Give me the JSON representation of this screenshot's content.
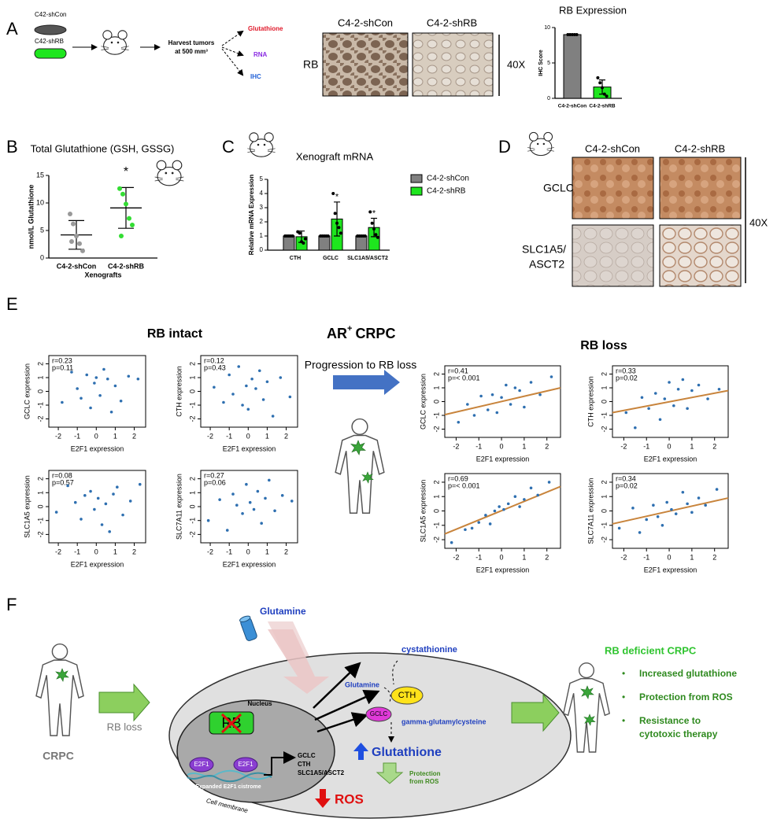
{
  "panel_a": {
    "letter": "A",
    "dishes": [
      "C42-shCon",
      "C42-shRB"
    ],
    "harvest": [
      "Harvest tumors",
      "at 500 mm³"
    ],
    "outputs": [
      "Glutathione",
      "RNA",
      "IHC"
    ],
    "ihc_columns": [
      "C4-2-shCon",
      "C4-2-shRB"
    ],
    "ihc_row": "RB",
    "magnification": "40X",
    "chart_data": {
      "type": "bar",
      "title": "RB Expression",
      "ylabel": "IHC Score",
      "categories": [
        "C4-2-shCon",
        "C4-2-shRB"
      ],
      "values": [
        9,
        1.6
      ],
      "errors": [
        0,
        1.0
      ],
      "colors": [
        "#808080",
        "#1ee61e"
      ],
      "points": [
        [
          9,
          9,
          9,
          9,
          9
        ],
        [
          2.9,
          2.2,
          1.5,
          0.6,
          0.3
        ]
      ],
      "ylim": [
        0,
        10
      ],
      "yticks": [
        0,
        5,
        10
      ]
    }
  },
  "panel_b": {
    "letter": "B",
    "chart_data": {
      "type": "dot",
      "title": "Total Glutathione (GSH, GSSG)",
      "ylabel": "nmol/L Glutathione",
      "xlabel": "Xenografts",
      "categories": [
        "C4-2-shCon",
        "C4-2-shRB"
      ],
      "values": [
        4.2,
        9.1
      ],
      "errors": [
        2.6,
        3.7
      ],
      "colors": [
        "#999999",
        "#33dd33"
      ],
      "points": [
        [
          8.0,
          6.2,
          4.0,
          2.6,
          1.3,
          3.0
        ],
        [
          12.6,
          11.6,
          9.8,
          7.2,
          6.0,
          4.0
        ]
      ],
      "ylim": [
        0,
        15
      ],
      "yticks": [
        0,
        5,
        10,
        15
      ],
      "annotations": [
        "*"
      ]
    }
  },
  "panel_c": {
    "letter": "C",
    "chart_data": {
      "type": "grouped-bar",
      "title": "Xenograft mRNA",
      "ylabel": "Relative mRNA Expression",
      "categories": [
        "CTH",
        "GCLC",
        "SLC1A5/ASCT2"
      ],
      "series": [
        {
          "name": "C4-2-shCon",
          "color": "#808080",
          "values": [
            1,
            1,
            1
          ],
          "errors": [
            0.05,
            0.05,
            0.05
          ],
          "points": [
            [
              1,
              1,
              1,
              1,
              1
            ],
            [
              1,
              1,
              1,
              1,
              1
            ],
            [
              1,
              1,
              1,
              1,
              1
            ]
          ]
        },
        {
          "name": "C4-2-shRB",
          "color": "#1ee61e",
          "values": [
            0.95,
            2.2,
            1.6
          ],
          "errors": [
            0.4,
            1.2,
            0.65
          ],
          "points": [
            [
              1.3,
              1.2,
              0.6,
              0.5,
              0.8
            ],
            [
              4.0,
              2.6,
              1.9,
              1.6,
              1.2
            ],
            [
              2.7,
              1.9,
              1.5,
              1.1,
              0.9
            ]
          ]
        }
      ],
      "ylim": [
        0,
        5
      ],
      "yticks": [
        0,
        1,
        2,
        3,
        4,
        5
      ],
      "annotations": [
        "*",
        "*"
      ]
    }
  },
  "panel_d": {
    "letter": "D",
    "columns": [
      "C4-2-shCon",
      "C4-2-shRB"
    ],
    "rows": [
      [
        "GCLC"
      ],
      [
        "SLC1A5/",
        "ASCT2"
      ]
    ],
    "magnification": "40X"
  },
  "panel_e": {
    "letter": "E",
    "left_heading": "RB intact",
    "center_heading": [
      "AR",
      "+",
      "CRPC"
    ],
    "arrow_label": "Progression to RB loss",
    "right_heading": "RB loss",
    "xlabel": "E2F1 expression",
    "xlim": [
      -2.5,
      2.6
    ],
    "ylim": [
      -2.6,
      2.6
    ],
    "xticks": [
      -2,
      -1,
      0,
      1,
      2
    ],
    "yticks": [
      -2,
      -1,
      0,
      1,
      2
    ],
    "plots": [
      {
        "ylabel": "GCLC expression",
        "stats": [
          "r=0.23",
          "p=0.11"
        ],
        "x": [
          -1.8,
          -1.3,
          -1.0,
          -0.8,
          -0.5,
          -0.3,
          -0.1,
          0,
          0.2,
          0.4,
          0.6,
          0.8,
          1.0,
          1.3,
          1.7,
          2.2
        ],
        "y": [
          -0.8,
          1.4,
          0.2,
          -0.5,
          1.2,
          -1.2,
          0.6,
          1.0,
          -0.3,
          1.6,
          0.9,
          -1.5,
          0.4,
          -0.7,
          1.1,
          0.9
        ]
      },
      {
        "ylabel": "CTH expression",
        "stats": [
          "r=0.12",
          "p=0.43"
        ],
        "x": [
          -1.8,
          -1.3,
          -1.0,
          -0.8,
          -0.5,
          -0.3,
          -0.1,
          0,
          0.2,
          0.4,
          0.6,
          0.8,
          1.0,
          1.3,
          1.7,
          2.2
        ],
        "y": [
          0.3,
          -0.8,
          1.2,
          -0.2,
          1.8,
          -1.0,
          0.4,
          -1.3,
          0.9,
          0.2,
          1.5,
          -0.6,
          0.7,
          -1.8,
          1.0,
          -0.4
        ]
      },
      {
        "ylabel": "SLC1A5 expression",
        "stats": [
          "r=0.08",
          "p=0.57"
        ],
        "x": [
          -2.1,
          -1.5,
          -1.1,
          -0.8,
          -0.6,
          -0.3,
          -0.1,
          0.1,
          0.3,
          0.5,
          0.7,
          0.9,
          1.1,
          1.4,
          1.8,
          2.3
        ],
        "y": [
          -0.4,
          1.5,
          0.3,
          -0.9,
          0.8,
          1.1,
          -0.2,
          0.6,
          -1.3,
          0.2,
          -1.8,
          0.9,
          1.4,
          -0.6,
          0.4,
          1.6
        ]
      },
      {
        "ylabel": "SLC7A11 expression",
        "stats": [
          "r=0.27",
          "p=0.06"
        ],
        "x": [
          -2.1,
          -1.5,
          -1.1,
          -0.8,
          -0.6,
          -0.3,
          -0.1,
          0.1,
          0.3,
          0.5,
          0.7,
          0.9,
          1.1,
          1.4,
          1.8,
          2.3
        ],
        "y": [
          -1.0,
          0.5,
          -1.7,
          0.9,
          0.1,
          -0.5,
          1.6,
          0.3,
          -0.2,
          1.1,
          -1.2,
          0.6,
          1.9,
          -0.3,
          0.8,
          0.4
        ]
      },
      {
        "ylabel": "GCLC expression",
        "stats": [
          "r=0.41",
          "p=< 0.001"
        ],
        "x": [
          -1.9,
          -1.5,
          -1.2,
          -0.9,
          -0.6,
          -0.4,
          -0.2,
          0,
          0.2,
          0.4,
          0.6,
          0.8,
          1.0,
          1.3,
          1.7,
          2.2
        ],
        "y": [
          -1.5,
          -0.2,
          -1.0,
          0.4,
          -0.6,
          0.5,
          -0.8,
          0.3,
          1.2,
          -0.2,
          1.0,
          0.8,
          -0.4,
          1.4,
          0.5,
          1.8
        ],
        "fit": {
          "x": [
            -2.5,
            2.6
          ],
          "y": [
            -0.95,
            1.0
          ]
        }
      },
      {
        "ylabel": "CTH expression",
        "stats": [
          "r=0.33",
          "p=0.02"
        ],
        "x": [
          -1.9,
          -1.5,
          -1.2,
          -0.9,
          -0.6,
          -0.4,
          -0.2,
          0,
          0.2,
          0.4,
          0.6,
          0.8,
          1.0,
          1.3,
          1.7,
          2.2
        ],
        "y": [
          -0.8,
          -1.9,
          0.3,
          -0.5,
          0.6,
          -1.3,
          0.2,
          1.4,
          -0.3,
          0.9,
          1.6,
          -0.5,
          0.8,
          1.2,
          0.2,
          0.9
        ],
        "fit": {
          "x": [
            -2.5,
            2.6
          ],
          "y": [
            -0.8,
            0.8
          ]
        }
      },
      {
        "ylabel": "SLC1A5 expression",
        "stats": [
          "r=0.69",
          "p=< 0.001"
        ],
        "x": [
          -2.2,
          -1.6,
          -1.3,
          -1.0,
          -0.7,
          -0.5,
          -0.3,
          -0.1,
          0.1,
          0.3,
          0.6,
          0.8,
          1.0,
          1.3,
          1.6,
          2.1
        ],
        "y": [
          -2.2,
          -1.3,
          -1.2,
          -0.8,
          -0.3,
          -0.9,
          0,
          0.3,
          0.1,
          0.5,
          1.0,
          0.3,
          0.8,
          1.6,
          1.1,
          2.0
        ],
        "fit": {
          "x": [
            -2.5,
            2.6
          ],
          "y": [
            -1.6,
            1.7
          ]
        }
      },
      {
        "ylabel": "SLC7A11 expression",
        "stats": [
          "r=0.34",
          "p=0.02"
        ],
        "x": [
          -2.2,
          -1.6,
          -1.3,
          -1.0,
          -0.7,
          -0.5,
          -0.3,
          -0.1,
          0.1,
          0.3,
          0.6,
          0.8,
          1.0,
          1.3,
          1.6,
          2.1
        ],
        "y": [
          -1.2,
          0.2,
          -1.5,
          -0.6,
          0.4,
          -0.4,
          -1.0,
          0.6,
          0.1,
          -0.2,
          1.3,
          0.5,
          -0.1,
          0.9,
          0.4,
          1.5
        ],
        "fit": {
          "x": [
            -2.5,
            2.6
          ],
          "y": [
            -0.9,
            0.9
          ]
        }
      }
    ]
  },
  "panel_f": {
    "letter": "F",
    "left_label": "CRPC",
    "rb_loss": "RB loss",
    "glutamine_out": "Glutamine",
    "cystathionine": "cystathionine",
    "nucleus": "Nucleus",
    "rb": "RB",
    "e2f1": [
      "E2F1",
      "E2F1"
    ],
    "cistrome": "Expanded E2F1 cistrome",
    "targets": [
      "GCLC",
      "CTH",
      "SLC1A5/ASCT2"
    ],
    "glutamine_in": "Glutamine",
    "cth": "CTH",
    "gclc": "GCLC",
    "intermediate": "gamma-glutamylcysteine",
    "glutathione": "Glutathione",
    "protection": [
      "Protection",
      "from ROS"
    ],
    "ros": "ROS",
    "membrane": "Cell membrane",
    "right_title": "RB deficient CRPC",
    "bullets": [
      [
        "Increased glutathione"
      ],
      [
        "Protection from ROS"
      ],
      [
        "Resistance to",
        "cytotoxic therapy"
      ]
    ]
  }
}
